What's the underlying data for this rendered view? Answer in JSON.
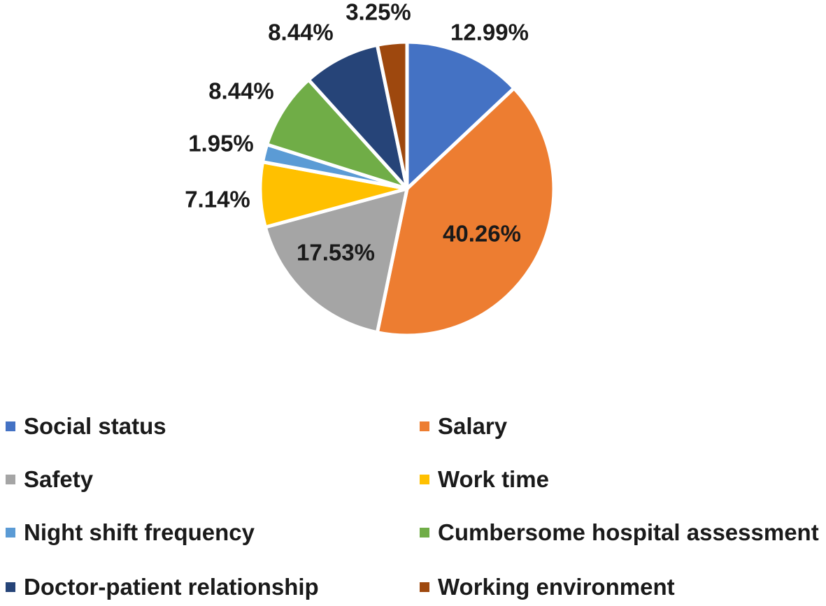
{
  "chart_data": {
    "type": "pie",
    "title": "",
    "slices": [
      {
        "label": "Social status",
        "value": 12.99,
        "display": "12.99%",
        "color": "#4472C4"
      },
      {
        "label": "Salary",
        "value": 40.26,
        "display": "40.26%",
        "color": "#ED7D31"
      },
      {
        "label": "Safety",
        "value": 17.53,
        "display": "17.53%",
        "color": "#A5A5A5"
      },
      {
        "label": "Work time",
        "value": 7.14,
        "display": "7.14%",
        "color": "#FFC000"
      },
      {
        "label": "Night shift frequency",
        "value": 1.95,
        "display": "1.95%",
        "color": "#5B9BD5"
      },
      {
        "label": "Cumbersome hospital assessment",
        "value": 8.44,
        "display": "8.44%",
        "color": "#70AD47"
      },
      {
        "label": "Doctor-patient relationship",
        "value": 8.44,
        "display": "8.44%",
        "color": "#264478"
      },
      {
        "label": "Working environment",
        "value": 3.25,
        "display": "3.25%",
        "color": "#9E480E"
      }
    ],
    "start": "12 o'clock",
    "direction": "clockwise",
    "legend": {
      "position": "bottom",
      "columns": 2
    }
  }
}
